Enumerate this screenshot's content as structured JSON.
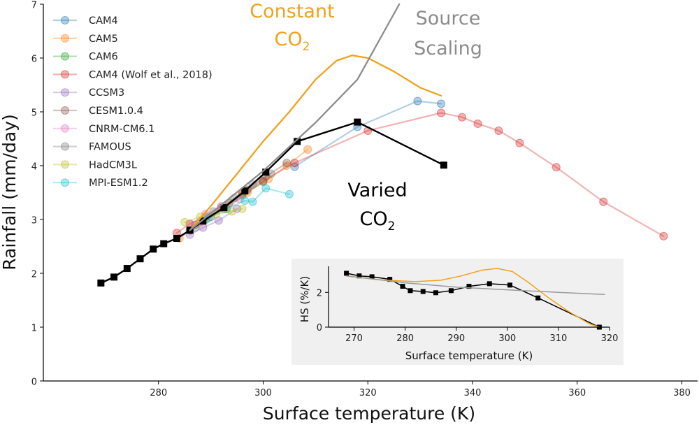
{
  "chart_data": [
    {
      "type": "line",
      "xlabel": "Surface temperature (K)",
      "ylabel": "Rainfall (mm/day)",
      "xlim": [
        258,
        383
      ],
      "ylim": [
        0,
        7
      ],
      "xticks": [
        280,
        300,
        320,
        340,
        360,
        380
      ],
      "yticks": [
        0,
        1,
        2,
        3,
        4,
        5,
        6,
        7
      ],
      "grid": false,
      "legend_position": "top-left",
      "annotations": {
        "constant": {
          "line1": "Constant",
          "line2_base": "CO",
          "line2_sub": "2",
          "color": "#f0a21c"
        },
        "source": {
          "line1": "Source",
          "line2": "Scaling",
          "color": "#8c8c8c"
        },
        "varied": {
          "line1": "Varied",
          "line2_base": "CO",
          "line2_sub": "2",
          "color": "#000000"
        }
      },
      "series": [
        {
          "name": "CAM4",
          "color": "#1f77b4",
          "marker": "circle",
          "x": [
            306,
            318,
            329.5,
            334
          ],
          "y": [
            3.98,
            4.72,
            5.2,
            5.15
          ]
        },
        {
          "name": "CAM5",
          "color": "#ff7f0e",
          "marker": "circle",
          "x": [
            284,
            288,
            293,
            297,
            301,
            304.5,
            308.5
          ],
          "y": [
            2.65,
            2.95,
            3.2,
            3.5,
            3.75,
            4.0,
            4.3
          ]
        },
        {
          "name": "CAM6",
          "color": "#2ca02c",
          "marker": "circle",
          "x": [
            286,
            289,
            292.5,
            296,
            300
          ],
          "y": [
            2.8,
            3.0,
            3.2,
            3.45,
            3.7
          ]
        },
        {
          "name": "CAM4 (Wolf et al., 2018)",
          "color": "#d62728",
          "marker": "circle",
          "x": [
            283.5,
            286,
            289,
            292,
            296,
            300,
            306,
            320,
            334,
            338,
            341,
            345,
            349,
            356,
            365,
            376.5
          ],
          "y": [
            2.75,
            2.92,
            3.05,
            3.22,
            3.48,
            3.72,
            4.05,
            4.65,
            4.98,
            4.9,
            4.78,
            4.65,
            4.42,
            3.97,
            3.33,
            2.69
          ]
        },
        {
          "name": "CCSM3",
          "color": "#9467bd",
          "marker": "circle",
          "x": [
            286,
            288.5,
            291.5,
            295
          ],
          "y": [
            2.72,
            2.85,
            2.98,
            3.2
          ]
        },
        {
          "name": "CESM1.0.4",
          "color": "#8c564b",
          "marker": "circle",
          "x": [
            287,
            290,
            293.5,
            297,
            300.5,
            304.5
          ],
          "y": [
            2.9,
            3.05,
            3.3,
            3.55,
            3.8,
            4.05
          ]
        },
        {
          "name": "CNRM-CM6.1",
          "color": "#e377c2",
          "marker": "circle",
          "x": [
            286,
            289,
            292,
            295.5
          ],
          "y": [
            2.9,
            3.1,
            3.25,
            3.38
          ]
        },
        {
          "name": "FAMOUS",
          "color": "#7f7f7f",
          "marker": "circle",
          "x": [
            287,
            290.5,
            294.5,
            298,
            301.5
          ],
          "y": [
            2.85,
            3.15,
            3.4,
            3.65,
            3.85
          ]
        },
        {
          "name": "HadCM3L",
          "color": "#bcbd22",
          "marker": "circle",
          "x": [
            285,
            288,
            291,
            294,
            296
          ],
          "y": [
            2.95,
            3.05,
            3.1,
            3.15,
            3.2
          ]
        },
        {
          "name": "MPI-ESM1.2",
          "color": "#17becf",
          "marker": "circle",
          "x": [
            289.5,
            293,
            296.5,
            298,
            300.5,
            305
          ],
          "y": [
            3.02,
            3.2,
            3.35,
            3.33,
            3.58,
            3.47
          ]
        },
        {
          "name": "Varied CO2",
          "color": "#000000",
          "marker": "square",
          "x": [
            269,
            271.5,
            274,
            276.5,
            279,
            281,
            283.5,
            286,
            288.5,
            292.5,
            296.5,
            300.5,
            306.5,
            318,
            334.5
          ],
          "y": [
            1.82,
            1.93,
            2.09,
            2.27,
            2.45,
            2.55,
            2.65,
            2.8,
            2.97,
            3.22,
            3.53,
            3.88,
            4.45,
            4.81,
            4.01
          ]
        },
        {
          "name": "Constant CO2",
          "color": "#f0a21c",
          "marker": "none",
          "x": [
            286,
            290,
            295,
            300,
            305,
            310,
            314,
            317,
            320,
            325,
            330,
            334
          ],
          "y": [
            2.8,
            3.25,
            3.85,
            4.45,
            5.0,
            5.6,
            5.95,
            6.05,
            6.0,
            5.75,
            5.45,
            5.3
          ]
        },
        {
          "name": "Source Scaling",
          "color": "#8c8c8c",
          "marker": "none",
          "x": [
            286,
            300,
            310,
            318,
            326
          ],
          "y": [
            2.8,
            3.9,
            4.8,
            5.6,
            7.0
          ]
        }
      ]
    },
    {
      "type": "line",
      "xlabel": "Surface temperature (K)",
      "ylabel": "HS (%/K)",
      "xlim": [
        265,
        320
      ],
      "ylim": [
        0,
        3.5
      ],
      "xticks": [
        270,
        280,
        290,
        300,
        310,
        320
      ],
      "yticks": [
        0,
        2
      ],
      "background": "#f0f0f0",
      "series": [
        {
          "name": "Varied CO2",
          "color": "#000000",
          "marker": "square",
          "x": [
            268.5,
            271,
            273.5,
            277,
            279.5,
            281,
            283.5,
            286,
            289,
            292.5,
            296.5,
            300.5,
            306,
            318
          ],
          "y": [
            3.1,
            2.95,
            2.9,
            2.75,
            2.35,
            2.1,
            2.05,
            1.98,
            2.1,
            2.35,
            2.5,
            2.42,
            1.68,
            0.0
          ]
        },
        {
          "name": "Constant CO2",
          "color": "#f0a21c",
          "marker": "none",
          "x": [
            268.5,
            275,
            282,
            287,
            291,
            295,
            298,
            301,
            304,
            308,
            312,
            316,
            318
          ],
          "y": [
            2.95,
            2.72,
            2.62,
            2.7,
            2.95,
            3.28,
            3.38,
            3.2,
            2.6,
            1.7,
            0.9,
            0.2,
            0.0
          ]
        },
        {
          "name": "Source Scaling",
          "color": "#9a9a9a",
          "marker": "none",
          "x": [
            268.5,
            280,
            290,
            300,
            310,
            319
          ],
          "y": [
            2.95,
            2.55,
            2.3,
            2.15,
            2.0,
            1.88
          ]
        }
      ]
    }
  ]
}
